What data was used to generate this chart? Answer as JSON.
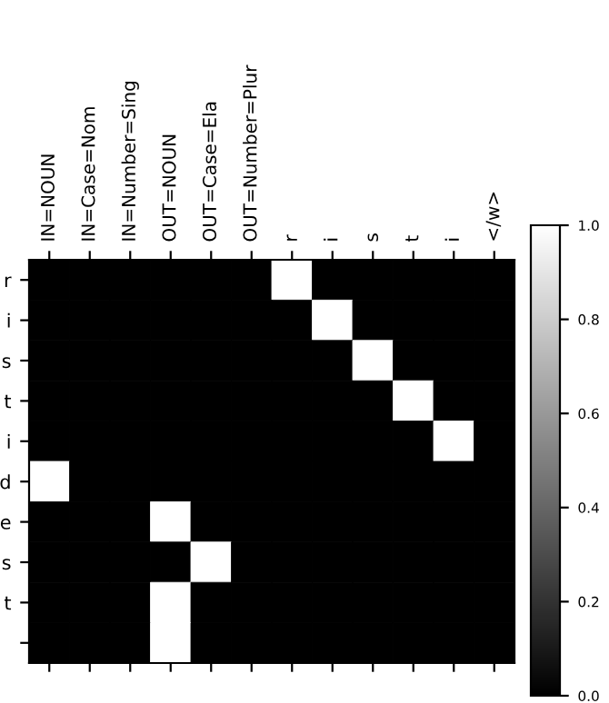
{
  "chart_data": {
    "type": "heatmap",
    "categories": [
      "IN=NOUN",
      "IN=Case=Nom",
      "IN=Number=Sing",
      "OUT=NOUN",
      "OUT=Case=Ela",
      "OUT=Number=Plur",
      "r",
      "i",
      "s",
      "t",
      "i",
      "</w>"
    ],
    "y_categories": [
      "r",
      "i",
      "s",
      "t",
      "i",
      "d",
      "e",
      "s",
      "t",
      null
    ],
    "cells": [
      [
        0,
        0,
        0,
        0,
        0,
        0,
        1,
        0,
        0,
        0,
        0,
        0
      ],
      [
        0,
        0,
        0,
        0,
        0,
        0,
        0,
        1,
        0,
        0,
        0,
        0
      ],
      [
        0,
        0,
        0,
        0,
        0,
        0,
        0,
        0,
        1,
        0,
        0,
        0
      ],
      [
        0,
        0,
        0,
        0,
        0,
        0,
        0,
        0,
        0,
        1,
        0,
        0
      ],
      [
        0,
        0,
        0,
        0,
        0,
        0,
        0,
        0,
        0,
        0,
        1,
        0
      ],
      [
        1,
        0,
        0,
        0,
        0,
        0,
        0,
        0,
        0,
        0,
        0,
        0
      ],
      [
        0,
        0,
        0,
        1,
        0,
        0,
        0,
        0,
        0,
        0,
        0,
        0
      ],
      [
        0,
        0,
        0,
        0,
        1,
        0,
        0,
        0,
        0,
        0,
        0,
        0
      ],
      [
        0,
        0,
        0,
        1,
        0,
        0,
        0,
        0,
        0,
        0,
        0,
        0
      ],
      [
        0,
        0,
        0,
        1,
        0,
        0,
        0,
        0,
        0,
        0,
        0,
        0
      ]
    ],
    "clim": [
      0,
      1
    ],
    "cticks": [
      {
        "value": 0,
        "label": "0.0"
      },
      {
        "value": 0.2,
        "label": "0.2"
      },
      {
        "value": 0.4,
        "label": "0.4"
      },
      {
        "value": 0.6,
        "label": "0.6"
      },
      {
        "value": 0.8,
        "label": "0.8"
      },
      {
        "value": 1,
        "label": "1.0"
      }
    ]
  }
}
